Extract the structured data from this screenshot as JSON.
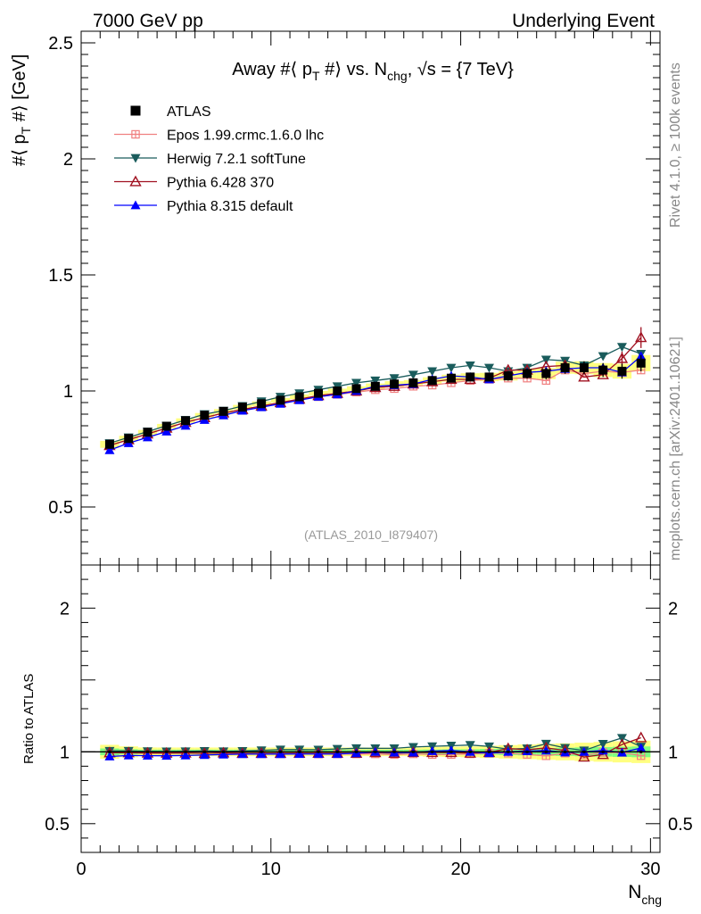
{
  "header": {
    "left": "7000 GeV pp",
    "right": "Underlying Event",
    "side_top": "Rivet 4.1.0, ≥ 100k events",
    "side_bottom": "mcplots.cern.ch [arXiv:2401.10621]"
  },
  "colors": {
    "atlas": "#000000",
    "epos": "#f08080",
    "herwig": "#1a5c5c",
    "pythia6": "#a01020",
    "pythia8": "#0000ff",
    "band_outer": "#ffff80",
    "band_inner": "#80ff80"
  },
  "chart_data": {
    "type": "scatter",
    "title": "Away #⟨ p_T #⟩ vs. N_chg, √s = {7 TeV}",
    "title_parts": {
      "a": "Away #⟨ p",
      "sub1": "T",
      "b": " #⟩ vs. N",
      "sub2": "chg",
      "c": ", √s = {7 TeV}"
    },
    "reference_tag": "(ATLAS_2010_I879407)",
    "xlabel": "N_chg",
    "xlabel_parts": {
      "main": "N",
      "sub": "chg"
    },
    "ylabel": "#⟨ p_T #⟩ [GeV]",
    "ylabel_parts": {
      "a": "#⟨ p",
      "sub": "T",
      "b": " #⟩ [GeV]"
    },
    "ratio_ylabel": "Ratio to ATLAS",
    "xlim": [
      0,
      30.5
    ],
    "ylim": [
      0.25,
      2.55
    ],
    "ratio_ylim": [
      0.3,
      2.3
    ],
    "x_ticks": [
      0,
      10,
      20,
      30
    ],
    "x_tick_labels": [
      "0",
      "10",
      "20",
      "30"
    ],
    "y_ticks": [
      0.5,
      1,
      1.5,
      2,
      2.5
    ],
    "y_tick_labels": [
      "0.5",
      "1",
      "1.5",
      "2",
      "2.5"
    ],
    "ratio_ticks": [
      0.5,
      1,
      2
    ],
    "ratio_tick_labels": [
      "0.5",
      "1",
      "2"
    ],
    "x": [
      1.5,
      2.5,
      3.5,
      4.5,
      5.5,
      6.5,
      7.5,
      8.5,
      9.5,
      10.5,
      11.5,
      12.5,
      13.5,
      14.5,
      15.5,
      16.5,
      17.5,
      18.5,
      19.5,
      20.5,
      21.5,
      22.5,
      23.5,
      24.5,
      25.5,
      26.5,
      27.5,
      28.5,
      29.5
    ],
    "series": [
      {
        "name": "ATLAS",
        "key": "atlas",
        "marker": "square",
        "values": [
          0.77,
          0.795,
          0.822,
          0.848,
          0.872,
          0.895,
          0.912,
          0.93,
          0.945,
          0.96,
          0.975,
          0.99,
          1.0,
          1.01,
          1.02,
          1.03,
          1.035,
          1.045,
          1.055,
          1.06,
          1.06,
          1.065,
          1.075,
          1.075,
          1.1,
          1.1,
          1.09,
          1.085,
          1.12
        ],
        "errors": [
          0.015,
          0.012,
          0.01,
          0.01,
          0.01,
          0.01,
          0.01,
          0.01,
          0.01,
          0.01,
          0.01,
          0.01,
          0.01,
          0.01,
          0.012,
          0.012,
          0.012,
          0.014,
          0.015,
          0.016,
          0.018,
          0.02,
          0.022,
          0.024,
          0.026,
          0.028,
          0.03,
          0.032,
          0.035
        ]
      },
      {
        "name": "Epos 1.99.crmc.1.6.0 lhc",
        "key": "epos",
        "marker": "cross",
        "values": [
          0.765,
          0.79,
          0.815,
          0.84,
          0.865,
          0.885,
          0.905,
          0.92,
          0.935,
          0.95,
          0.965,
          0.975,
          0.985,
          0.995,
          1.005,
          1.01,
          1.02,
          1.025,
          1.035,
          1.045,
          1.05,
          1.055,
          1.055,
          1.045,
          1.09,
          1.075,
          1.085,
          1.08,
          1.09
        ]
      },
      {
        "name": "Herwig 7.2.1 softTune",
        "key": "herwig",
        "marker": "tri-down",
        "values": [
          0.775,
          0.8,
          0.825,
          0.85,
          0.875,
          0.9,
          0.915,
          0.935,
          0.955,
          0.975,
          0.99,
          1.005,
          1.02,
          1.035,
          1.045,
          1.055,
          1.07,
          1.085,
          1.1,
          1.11,
          1.1,
          1.085,
          1.1,
          1.135,
          1.13,
          1.11,
          1.15,
          1.19,
          1.16
        ]
      },
      {
        "name": "Pythia 6.428 370",
        "key": "pythia6",
        "marker": "tri-up-open",
        "values": [
          0.765,
          0.79,
          0.815,
          0.84,
          0.865,
          0.885,
          0.905,
          0.92,
          0.935,
          0.95,
          0.965,
          0.98,
          0.99,
          1.0,
          1.015,
          1.02,
          1.03,
          1.04,
          1.05,
          1.05,
          1.055,
          1.09,
          1.09,
          1.105,
          1.11,
          1.06,
          1.07,
          1.14,
          1.23
        ],
        "errors": [
          0,
          0,
          0,
          0,
          0,
          0,
          0,
          0,
          0,
          0,
          0,
          0,
          0,
          0,
          0,
          0,
          0,
          0,
          0,
          0,
          0,
          0,
          0,
          0,
          0,
          0,
          0,
          0.03,
          0.045
        ]
      },
      {
        "name": "Pythia 8.315 default",
        "key": "pythia8",
        "marker": "tri-up",
        "values": [
          0.745,
          0.775,
          0.8,
          0.825,
          0.85,
          0.875,
          0.895,
          0.915,
          0.93,
          0.945,
          0.96,
          0.975,
          0.985,
          1.0,
          1.02,
          1.025,
          1.03,
          1.05,
          1.065,
          1.06,
          1.05,
          1.065,
          1.08,
          1.085,
          1.095,
          1.1,
          1.1,
          1.08,
          1.15
        ]
      }
    ]
  }
}
